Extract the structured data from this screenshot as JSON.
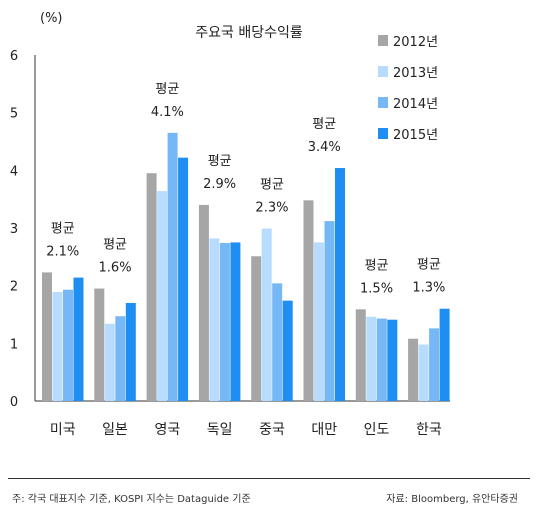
{
  "chart_data": {
    "type": "bar",
    "title": "주요국 배당수익률",
    "ylabel": "(%)",
    "ylim": [
      0,
      6
    ],
    "yticks": [
      "0",
      "1",
      "2",
      "3",
      "4",
      "5",
      "6"
    ],
    "grid": false,
    "legend_position": "top-right",
    "categories": [
      "미국",
      "일본",
      "영국",
      "독일",
      "중국",
      "대만",
      "인도",
      "한국"
    ],
    "series": [
      {
        "name": "2012년",
        "color": "#a6a6a6",
        "values": [
          2.23,
          1.95,
          3.95,
          3.4,
          2.51,
          3.48,
          1.59,
          1.08
        ]
      },
      {
        "name": "2013년",
        "color": "#b8dcff",
        "values": [
          1.89,
          1.34,
          3.64,
          2.82,
          2.99,
          2.75,
          1.46,
          0.98
        ]
      },
      {
        "name": "2014년",
        "color": "#75b8f5",
        "values": [
          1.93,
          1.47,
          4.65,
          2.74,
          2.04,
          3.12,
          1.43,
          1.26
        ]
      },
      {
        "name": "2015년",
        "color": "#1f8ef2",
        "values": [
          2.14,
          1.7,
          4.22,
          2.75,
          1.74,
          4.04,
          1.41,
          1.6
        ]
      }
    ],
    "annotations": [
      {
        "label": "평균",
        "value": "2.1%"
      },
      {
        "label": "평균",
        "value": "1.6%"
      },
      {
        "label": "평균",
        "value": "4.1%"
      },
      {
        "label": "평균",
        "value": "2.9%"
      },
      {
        "label": "평균",
        "value": "2.3%"
      },
      {
        "label": "평균",
        "value": "3.4%"
      },
      {
        "label": "평균",
        "value": "1.5%"
      },
      {
        "label": "평균",
        "value": "1.3%"
      }
    ]
  },
  "footnote": {
    "note": "주: 각국 대표지수 기준, KOSPI 지수는 Dataguide 기준",
    "source": "자료: Bloomberg, 유안타증권"
  }
}
